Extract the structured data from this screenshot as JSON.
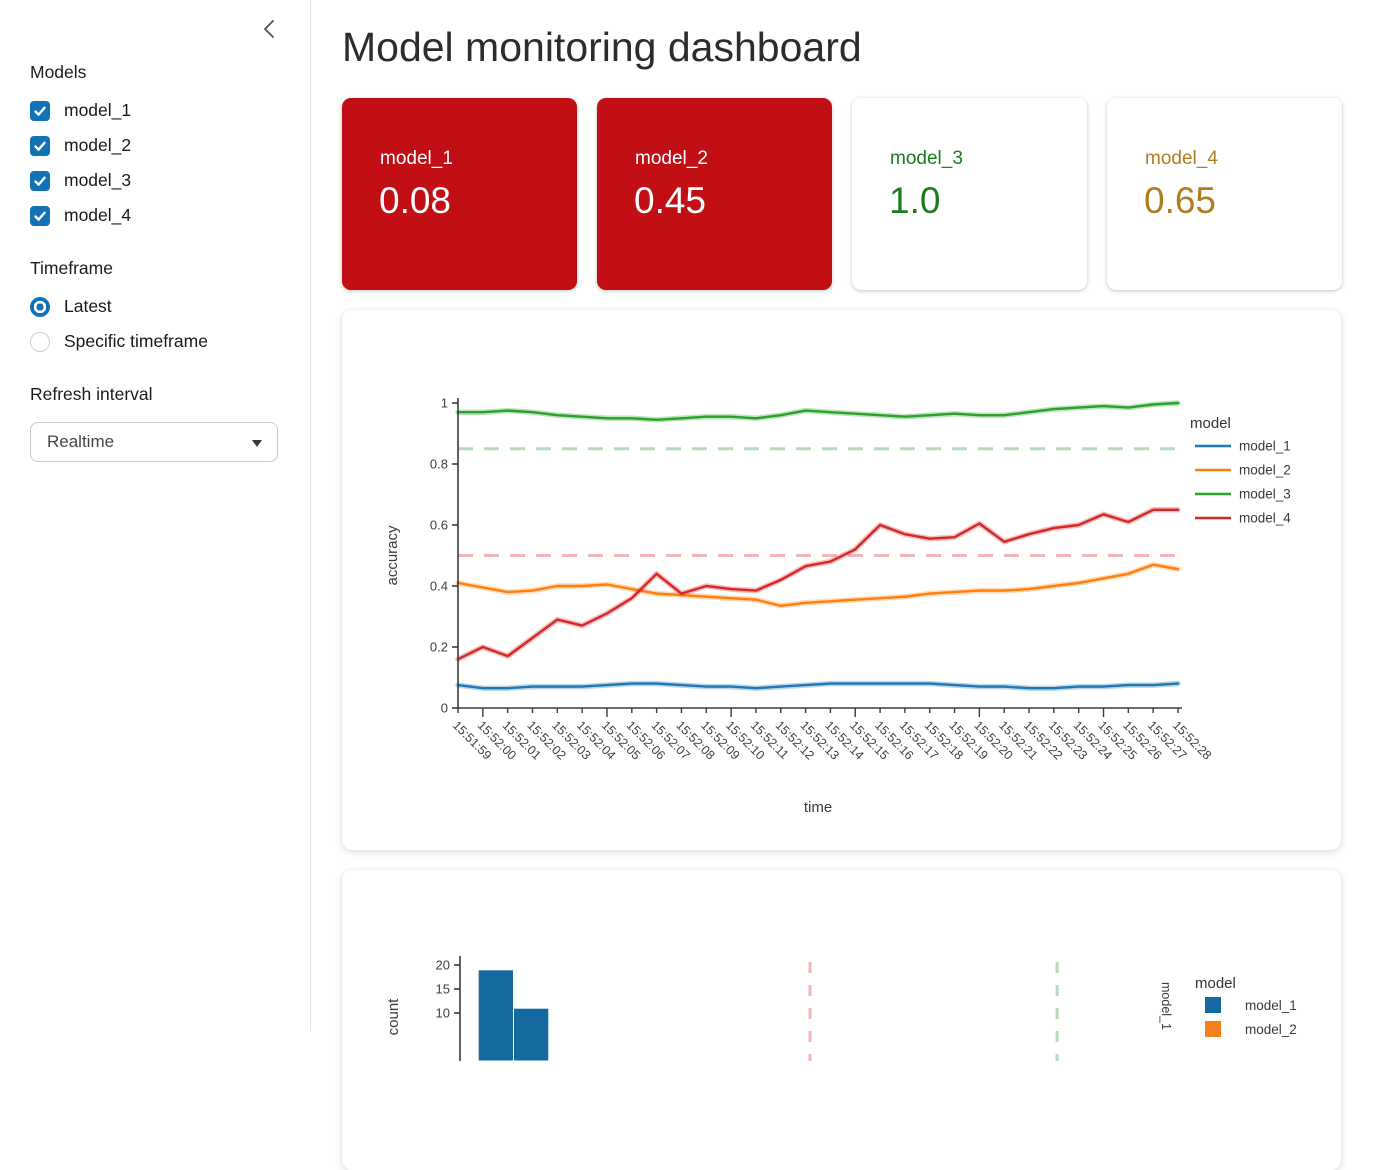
{
  "sidebar": {
    "models_label": "Models",
    "models": [
      {
        "label": "model_1",
        "checked": true
      },
      {
        "label": "model_2",
        "checked": true
      },
      {
        "label": "model_3",
        "checked": true
      },
      {
        "label": "model_4",
        "checked": true
      }
    ],
    "timeframe_label": "Timeframe",
    "timeframe_options": [
      {
        "label": "Latest",
        "selected": true
      },
      {
        "label": "Specific timeframe",
        "selected": false
      }
    ],
    "refresh_interval_label": "Refresh interval",
    "refresh_interval_value": "Realtime"
  },
  "header": {
    "title": "Model monitoring dashboard"
  },
  "metric_cards": [
    {
      "label": "model_1",
      "value": "0.08",
      "bg": "#c20f15",
      "fg": "#ffffff"
    },
    {
      "label": "model_2",
      "value": "0.45",
      "bg": "#c20f15",
      "fg": "#ffffff"
    },
    {
      "label": "model_3",
      "value": "1.0",
      "bg": "#ffffff",
      "fg": "#1d7c1d"
    },
    {
      "label": "model_4",
      "value": "0.65",
      "bg": "#ffffff",
      "fg": "#b07c1f"
    }
  ],
  "chart_data": [
    {
      "type": "line",
      "xlabel": "time",
      "ylabel": "accuracy",
      "legend_title": "model",
      "legend_position": "right",
      "ylim": [
        0,
        1
      ],
      "yticks": [
        0,
        0.2,
        0.4,
        0.6,
        0.8,
        1
      ],
      "x": [
        "15:51:59",
        "15:52:00",
        "15:52:01",
        "15:52:02",
        "15:52:03",
        "15:52:04",
        "15:52:05",
        "15:52:06",
        "15:52:07",
        "15:52:08",
        "15:52:09",
        "15:52:10",
        "15:52:11",
        "15:52:12",
        "15:52:13",
        "15:52:14",
        "15:52:15",
        "15:52:16",
        "15:52:17",
        "15:52:18",
        "15:52:19",
        "15:52:20",
        "15:52:21",
        "15:52:22",
        "15:52:23",
        "15:52:24",
        "15:52:25",
        "15:52:26",
        "15:52:27",
        "15:52:28"
      ],
      "series": [
        {
          "name": "model_1",
          "color": "#1f77b4",
          "values": [
            0.075,
            0.065,
            0.065,
            0.07,
            0.07,
            0.07,
            0.075,
            0.08,
            0.08,
            0.075,
            0.07,
            0.07,
            0.065,
            0.07,
            0.075,
            0.08,
            0.08,
            0.08,
            0.08,
            0.08,
            0.075,
            0.07,
            0.07,
            0.065,
            0.065,
            0.07,
            0.07,
            0.075,
            0.075,
            0.08
          ]
        },
        {
          "name": "model_2",
          "color": "#ff7f0e",
          "values": [
            0.41,
            0.395,
            0.38,
            0.385,
            0.4,
            0.4,
            0.405,
            0.39,
            0.375,
            0.37,
            0.365,
            0.36,
            0.355,
            0.335,
            0.345,
            0.35,
            0.355,
            0.36,
            0.365,
            0.375,
            0.38,
            0.385,
            0.385,
            0.39,
            0.4,
            0.41,
            0.425,
            0.44,
            0.47,
            0.455
          ]
        },
        {
          "name": "model_3",
          "color": "#2ca02c",
          "values": [
            0.97,
            0.97,
            0.975,
            0.97,
            0.96,
            0.955,
            0.95,
            0.95,
            0.945,
            0.95,
            0.955,
            0.955,
            0.95,
            0.96,
            0.975,
            0.97,
            0.965,
            0.96,
            0.955,
            0.96,
            0.965,
            0.96,
            0.96,
            0.97,
            0.98,
            0.985,
            0.99,
            0.985,
            0.995,
            1.0
          ]
        },
        {
          "name": "model_4",
          "color": "#d62728",
          "values": [
            0.16,
            0.2,
            0.17,
            0.23,
            0.29,
            0.27,
            0.31,
            0.36,
            0.44,
            0.375,
            0.4,
            0.39,
            0.385,
            0.42,
            0.465,
            0.48,
            0.52,
            0.6,
            0.57,
            0.555,
            0.56,
            0.605,
            0.545,
            0.57,
            0.59,
            0.6,
            0.635,
            0.61,
            0.65,
            0.65
          ]
        }
      ],
      "thresholds": [
        {
          "value": 0.85,
          "color": "#b7dcb9"
        },
        {
          "value": 0.5,
          "color": "#f3b7ba"
        }
      ]
    },
    {
      "type": "bar",
      "ylabel": "count",
      "legend_title": "model",
      "xlim": [
        0,
        1
      ],
      "yticks": [
        20,
        15,
        10
      ],
      "bar_color": "#15699f",
      "bars": [
        {
          "x_start": 0.03,
          "x_end": 0.08,
          "count": 19
        },
        {
          "x_start": 0.08,
          "x_end": 0.13,
          "count": 11
        }
      ],
      "vlines": [
        {
          "value": 0.5,
          "color": "#f3b7ba"
        },
        {
          "value": 0.85,
          "color": "#b7dcb9"
        }
      ],
      "legend": [
        {
          "label": "model_1",
          "color": "#15699f"
        },
        {
          "label": "model_2",
          "color": "#f5801e"
        }
      ],
      "facet_label": "model_1"
    }
  ]
}
